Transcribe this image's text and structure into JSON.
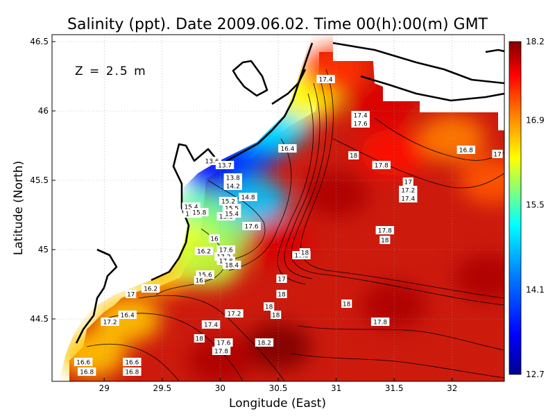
{
  "chart_data": {
    "type": "heatmap",
    "title": "Salinity (ppt). Date 2009.06.02. Time 00(h):00(m) GMT",
    "xlabel": "Longitude (East)",
    "ylabel": "Latitude (North)",
    "depth_label": "Z  =  2.5  m",
    "xlim": [
      28.55,
      32.45
    ],
    "ylim": [
      44.05,
      46.55
    ],
    "x_ticks": [
      {
        "value": 29,
        "label": "29"
      },
      {
        "value": 29.5,
        "label": "29.5"
      },
      {
        "value": 30,
        "label": "30"
      },
      {
        "value": 30.5,
        "label": "30.5"
      },
      {
        "value": 31,
        "label": "31"
      },
      {
        "value": 31.5,
        "label": "31.5"
      },
      {
        "value": 32,
        "label": "32"
      }
    ],
    "y_ticks": [
      {
        "value": 44.5,
        "label": "44.5"
      },
      {
        "value": 45,
        "label": "45"
      },
      {
        "value": 45.5,
        "label": "45.5"
      },
      {
        "value": 46,
        "label": "46"
      },
      {
        "value": 46.5,
        "label": "46.5"
      }
    ],
    "grid": true,
    "colorbar": {
      "min": 12.7,
      "max": 18.2,
      "labels": [
        "18.2",
        "16.9",
        "15.5",
        "14.1",
        "12.7"
      ],
      "label_values": [
        18.2,
        16.9,
        15.5,
        14.1,
        12.7
      ],
      "colormap": [
        "#00008f",
        "#0000ff",
        "#0080ff",
        "#00ffff",
        "#80ff80",
        "#ffff00",
        "#ff8000",
        "#ff0000",
        "#800000"
      ]
    },
    "contour_labels": [
      {
        "lon": 30.91,
        "lat": 46.23,
        "text": "17.4"
      },
      {
        "lon": 31.21,
        "lat": 45.97,
        "text": "17.4"
      },
      {
        "lon": 31.21,
        "lat": 45.91,
        "text": "17.6"
      },
      {
        "lon": 32.12,
        "lat": 45.72,
        "text": "16.8"
      },
      {
        "lon": 32.39,
        "lat": 45.69,
        "text": "17"
      },
      {
        "lon": 30.58,
        "lat": 45.73,
        "text": "16.4"
      },
      {
        "lon": 31.15,
        "lat": 45.68,
        "text": "18"
      },
      {
        "lon": 31.39,
        "lat": 45.61,
        "text": "17.8"
      },
      {
        "lon": 29.93,
        "lat": 45.64,
        "text": "13.6"
      },
      {
        "lon": 30.04,
        "lat": 45.61,
        "text": "13.7"
      },
      {
        "lon": 30.11,
        "lat": 45.52,
        "text": "13.8"
      },
      {
        "lon": 30.11,
        "lat": 45.46,
        "text": "14.2"
      },
      {
        "lon": 30.24,
        "lat": 45.38,
        "text": "14.8"
      },
      {
        "lon": 30.07,
        "lat": 45.35,
        "text": "15.2"
      },
      {
        "lon": 30.1,
        "lat": 45.3,
        "text": "15.5"
      },
      {
        "lon": 29.75,
        "lat": 45.31,
        "text": "15.4"
      },
      {
        "lon": 29.76,
        "lat": 45.26,
        "text": "15.8"
      },
      {
        "lon": 29.82,
        "lat": 45.27,
        "text": "15.8"
      },
      {
        "lon": 30.05,
        "lat": 45.24,
        "text": "15.6"
      },
      {
        "lon": 30.1,
        "lat": 45.26,
        "text": "15.4"
      },
      {
        "lon": 30.27,
        "lat": 45.17,
        "text": "17.6"
      },
      {
        "lon": 29.95,
        "lat": 45.08,
        "text": "16"
      },
      {
        "lon": 29.86,
        "lat": 44.99,
        "text": "16.2"
      },
      {
        "lon": 30.05,
        "lat": 45.0,
        "text": "17.6"
      },
      {
        "lon": 30.03,
        "lat": 44.95,
        "text": "17.2"
      },
      {
        "lon": 30.05,
        "lat": 44.92,
        "text": "17.8"
      },
      {
        "lon": 30.1,
        "lat": 44.89,
        "text": "18.4"
      },
      {
        "lon": 30.7,
        "lat": 44.96,
        "text": "17.8"
      },
      {
        "lon": 30.73,
        "lat": 44.98,
        "text": "18"
      },
      {
        "lon": 31.42,
        "lat": 45.14,
        "text": "17.8"
      },
      {
        "lon": 31.42,
        "lat": 45.07,
        "text": "18"
      },
      {
        "lon": 31.62,
        "lat": 45.49,
        "text": "17"
      },
      {
        "lon": 31.62,
        "lat": 45.43,
        "text": "17.2"
      },
      {
        "lon": 31.62,
        "lat": 45.37,
        "text": "17.4"
      },
      {
        "lon": 29.87,
        "lat": 44.82,
        "text": "15.6"
      },
      {
        "lon": 29.82,
        "lat": 44.78,
        "text": "16"
      },
      {
        "lon": 29.4,
        "lat": 44.72,
        "text": "16.2"
      },
      {
        "lon": 29.23,
        "lat": 44.68,
        "text": "17"
      },
      {
        "lon": 30.53,
        "lat": 44.79,
        "text": "17"
      },
      {
        "lon": 30.53,
        "lat": 44.68,
        "text": "18"
      },
      {
        "lon": 31.09,
        "lat": 44.61,
        "text": "18"
      },
      {
        "lon": 29.2,
        "lat": 44.53,
        "text": "16.4"
      },
      {
        "lon": 29.05,
        "lat": 44.48,
        "text": "17.2"
      },
      {
        "lon": 30.12,
        "lat": 44.54,
        "text": "17.2"
      },
      {
        "lon": 30.42,
        "lat": 44.59,
        "text": "18"
      },
      {
        "lon": 30.48,
        "lat": 44.53,
        "text": "18"
      },
      {
        "lon": 29.92,
        "lat": 44.46,
        "text": "17.4"
      },
      {
        "lon": 29.82,
        "lat": 44.36,
        "text": "18"
      },
      {
        "lon": 30.03,
        "lat": 44.33,
        "text": "17.6"
      },
      {
        "lon": 30.01,
        "lat": 44.27,
        "text": "17.8"
      },
      {
        "lon": 30.38,
        "lat": 44.33,
        "text": "18.2"
      },
      {
        "lon": 31.38,
        "lat": 44.48,
        "text": "17.8"
      },
      {
        "lon": 28.82,
        "lat": 44.19,
        "text": "16.6"
      },
      {
        "lon": 28.85,
        "lat": 44.12,
        "text": "16.8"
      },
      {
        "lon": 29.24,
        "lat": 44.19,
        "text": "16.6"
      },
      {
        "lon": 29.24,
        "lat": 44.12,
        "text": "16.8"
      }
    ],
    "field_samples": [
      {
        "lon": 30.0,
        "lat": 45.55,
        "value": 13.3
      },
      {
        "lon": 30.2,
        "lat": 45.7,
        "value": 13.6
      },
      {
        "lon": 30.35,
        "lat": 45.8,
        "value": 14.2
      },
      {
        "lon": 30.5,
        "lat": 45.9,
        "value": 15.0
      },
      {
        "lon": 30.75,
        "lat": 46.1,
        "value": 16.3
      },
      {
        "lon": 29.85,
        "lat": 45.25,
        "value": 15.6
      },
      {
        "lon": 30.1,
        "lat": 45.15,
        "value": 15.8
      },
      {
        "lon": 30.3,
        "lat": 45.35,
        "value": 14.8
      },
      {
        "lon": 29.65,
        "lat": 45.05,
        "value": 16.2
      },
      {
        "lon": 29.5,
        "lat": 44.85,
        "value": 16.6
      },
      {
        "lon": 29.2,
        "lat": 44.5,
        "value": 16.6
      },
      {
        "lon": 28.9,
        "lat": 44.25,
        "value": 16.6
      },
      {
        "lon": 29.9,
        "lat": 44.9,
        "value": 16.0
      },
      {
        "lon": 30.5,
        "lat": 45.05,
        "value": 17.8
      },
      {
        "lon": 31.0,
        "lat": 45.4,
        "value": 18.0
      },
      {
        "lon": 31.5,
        "lat": 45.7,
        "value": 17.6
      },
      {
        "lon": 32.0,
        "lat": 45.8,
        "value": 17.0
      },
      {
        "lon": 32.35,
        "lat": 45.5,
        "value": 17.2
      },
      {
        "lon": 32.3,
        "lat": 44.8,
        "value": 18.0
      },
      {
        "lon": 31.5,
        "lat": 44.6,
        "value": 18.0
      },
      {
        "lon": 30.5,
        "lat": 44.3,
        "value": 18.2
      },
      {
        "lon": 30.0,
        "lat": 44.2,
        "value": 18.0
      },
      {
        "lon": 31.0,
        "lat": 46.3,
        "value": 17.4
      },
      {
        "lon": 31.4,
        "lat": 46.05,
        "value": 17.8
      }
    ]
  }
}
